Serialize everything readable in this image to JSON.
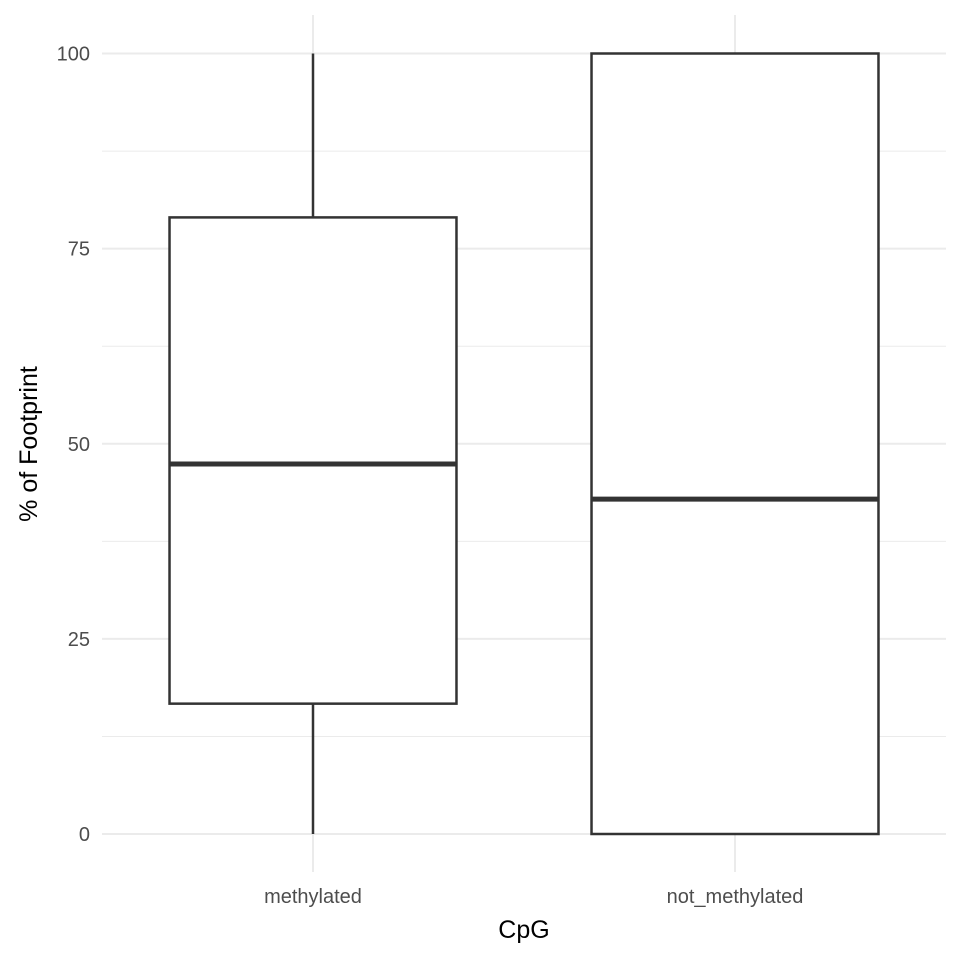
{
  "chart_data": {
    "type": "boxplot",
    "xlabel": "CpG",
    "ylabel": "% of Footprint",
    "ylim": [
      0,
      100
    ],
    "yticks": [
      0,
      25,
      50,
      75,
      100
    ],
    "ytick_labels": [
      "0",
      "25",
      "50",
      "75",
      "100"
    ],
    "y_minor_ticks": [
      12.5,
      37.5,
      62.5,
      87.5
    ],
    "categories": [
      "methylated",
      "not_methylated"
    ],
    "boxes": [
      {
        "category": "methylated",
        "min": 0,
        "q1": 16.7,
        "median": 47.4,
        "q3": 79,
        "max": 100
      },
      {
        "category": "not_methylated",
        "min": 0,
        "q1": 0,
        "median": 42.9,
        "q3": 100,
        "max": 100
      }
    ],
    "grid": true,
    "legend": "none",
    "colors": {
      "grid": "#ebebeb",
      "box_stroke": "#333333",
      "box_fill": "#ffffff"
    }
  }
}
